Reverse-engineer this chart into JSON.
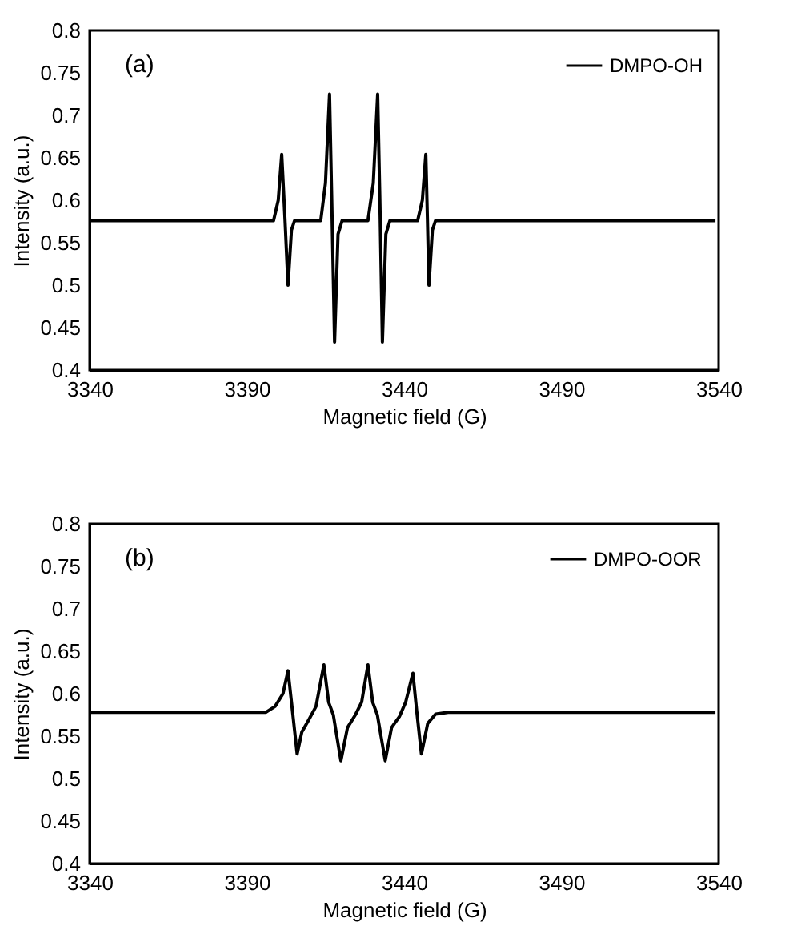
{
  "chart_data": [
    {
      "type": "line",
      "xlabel": "Magnetic field (G)",
      "ylabel": "Intensity (a.u.)",
      "annotations": [
        "(a)"
      ],
      "xlim": [
        3340,
        3540
      ],
      "xticks": [
        3340,
        3390,
        3440,
        3490,
        3540
      ],
      "ylim": [
        0.4,
        0.8
      ],
      "yticks": [
        0.4,
        0.45,
        0.5,
        0.55,
        0.6,
        0.65,
        0.7,
        0.75,
        0.8
      ],
      "grid": false,
      "legend": "top right",
      "x": [
        3340,
        3398.5,
        3400,
        3401.1,
        3402.1,
        3403.1,
        3404.2,
        3405.2,
        3413.5,
        3415,
        3416.3,
        3417,
        3417.9,
        3419,
        3420.3,
        3428.5,
        3430.2,
        3431.6,
        3432.3,
        3433.1,
        3434.2,
        3435.5,
        3444.3,
        3445.8,
        3446.9,
        3447.4,
        3447.9,
        3449,
        3450,
        3539
      ],
      "series": [
        {
          "name": "DMPO-OH",
          "color": "#000000",
          "values": [
            0.576,
            0.576,
            0.6,
            0.654,
            0.58,
            0.5,
            0.565,
            0.576,
            0.576,
            0.62,
            0.725,
            0.6,
            0.433,
            0.56,
            0.576,
            0.576,
            0.62,
            0.725,
            0.6,
            0.433,
            0.56,
            0.576,
            0.576,
            0.6,
            0.654,
            0.58,
            0.5,
            0.565,
            0.576,
            0.576
          ]
        }
      ]
    },
    {
      "type": "line",
      "xlabel": "Magnetic field (G)",
      "ylabel": "Intensity (a.u.)",
      "annotations": [
        "(b)"
      ],
      "xlim": [
        3340,
        3540
      ],
      "xticks": [
        3340,
        3390,
        3440,
        3490,
        3540
      ],
      "ylim": [
        0.4,
        0.8
      ],
      "yticks": [
        0.4,
        0.45,
        0.5,
        0.55,
        0.6,
        0.65,
        0.7,
        0.75,
        0.8
      ],
      "grid": false,
      "legend": "top right",
      "x": [
        3340,
        3396,
        3399,
        3401.5,
        3403.1,
        3404.5,
        3406.0,
        3407.5,
        3409.5,
        3412,
        3414.5,
        3416,
        3417.5,
        3419.9,
        3422,
        3424.5,
        3426.5,
        3428.5,
        3430,
        3431.5,
        3434.0,
        3436,
        3438.5,
        3440.5,
        3442.8,
        3444,
        3445.5,
        3447.5,
        3450,
        3454,
        3539
      ],
      "series": [
        {
          "name": "DMPO-OOR",
          "color": "#000000",
          "values": [
            0.578,
            0.578,
            0.585,
            0.6,
            0.627,
            0.58,
            0.529,
            0.555,
            0.568,
            0.585,
            0.634,
            0.59,
            0.575,
            0.521,
            0.56,
            0.575,
            0.59,
            0.634,
            0.59,
            0.575,
            0.521,
            0.56,
            0.573,
            0.59,
            0.624,
            0.58,
            0.529,
            0.565,
            0.576,
            0.578,
            0.578
          ]
        }
      ]
    }
  ]
}
